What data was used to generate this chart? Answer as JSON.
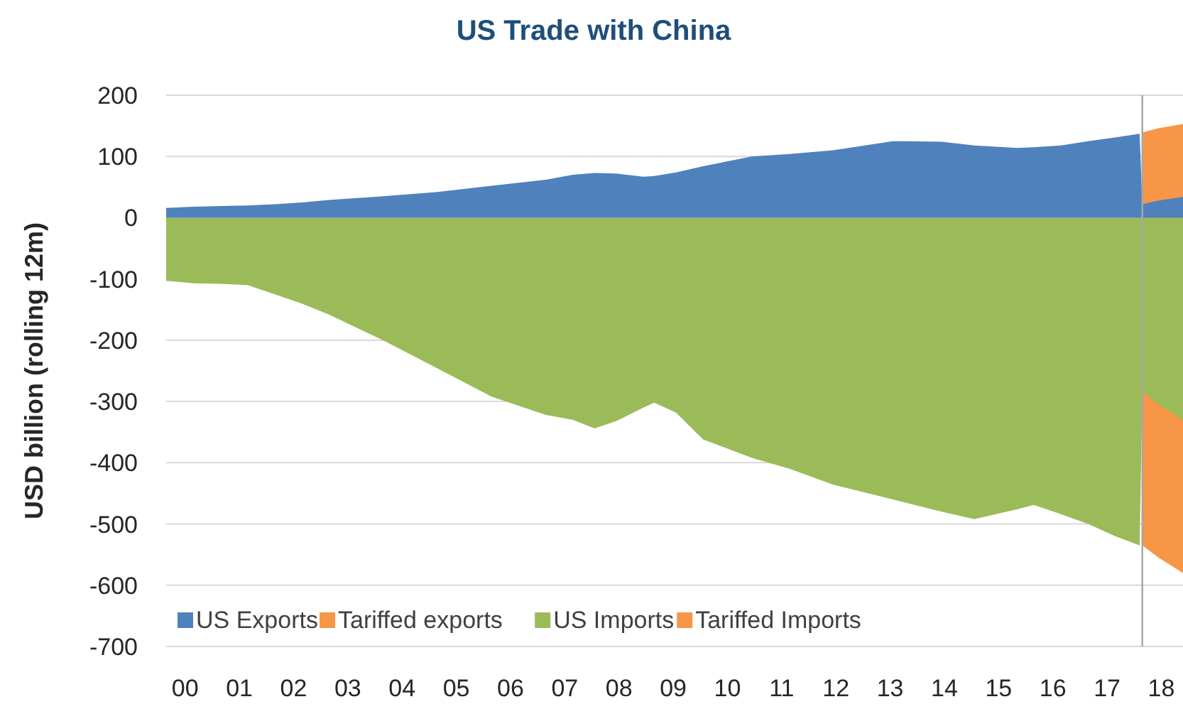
{
  "chart_data": {
    "type": "area",
    "title": "US Trade with China",
    "ylabel": "USD billion (rolling 12m)",
    "x": [
      -0.35,
      0.15,
      0.65,
      1.15,
      1.65,
      2.15,
      2.65,
      3.65,
      4.65,
      5.65,
      6.65,
      7.15,
      7.55,
      7.95,
      8.45,
      8.65,
      9.05,
      9.55,
      10.45,
      11.15,
      11.95,
      13.05,
      13.95,
      14.55,
      15.35,
      15.65,
      16.15,
      16.65,
      17.15,
      17.6,
      17.65,
      17.95,
      18.4
    ],
    "series": [
      {
        "name": "US Exports",
        "color": "#4f81bd",
        "values": [
          16,
          18,
          19,
          20,
          22,
          25,
          29,
          35,
          42,
          52,
          62,
          70,
          73,
          72,
          67,
          68,
          74,
          84,
          100,
          104,
          110,
          125,
          124,
          118,
          114,
          115,
          118,
          125,
          131,
          137,
          22,
          28,
          34
        ]
      },
      {
        "name": "Tariffed exports",
        "color": "#f79646",
        "values": [
          null,
          null,
          null,
          null,
          null,
          null,
          null,
          null,
          null,
          null,
          null,
          null,
          null,
          null,
          null,
          null,
          null,
          null,
          null,
          null,
          null,
          null,
          null,
          null,
          null,
          null,
          null,
          null,
          null,
          null,
          139,
          146,
          153
        ]
      },
      {
        "name": "US Imports",
        "color": "#9bbb59",
        "values": [
          -103,
          -107,
          -108,
          -110,
          -125,
          -140,
          -158,
          -200,
          -246,
          -292,
          -322,
          -330,
          -344,
          -332,
          -310,
          -302,
          -318,
          -362,
          -392,
          -410,
          -436,
          -460,
          -480,
          -492,
          -476,
          -469,
          -484,
          -500,
          -520,
          -535,
          -285,
          -305,
          -330
        ]
      },
      {
        "name": "Tariffed Imports",
        "color": "#f79646",
        "values": [
          null,
          null,
          null,
          null,
          null,
          null,
          null,
          null,
          null,
          null,
          null,
          null,
          null,
          null,
          null,
          null,
          null,
          null,
          null,
          null,
          null,
          null,
          null,
          null,
          null,
          null,
          null,
          null,
          null,
          null,
          -535,
          -555,
          -580
        ]
      }
    ],
    "xlim": [
      -0.35,
      18.4
    ],
    "xticks": [
      {
        "value": 0,
        "label": "00"
      },
      {
        "value": 1,
        "label": "01"
      },
      {
        "value": 2,
        "label": "02"
      },
      {
        "value": 3,
        "label": "03"
      },
      {
        "value": 4,
        "label": "04"
      },
      {
        "value": 5,
        "label": "05"
      },
      {
        "value": 6,
        "label": "06"
      },
      {
        "value": 7,
        "label": "07"
      },
      {
        "value": 8,
        "label": "08"
      },
      {
        "value": 9,
        "label": "09"
      },
      10,
      11,
      12,
      13,
      14,
      15,
      16,
      17,
      18
    ],
    "ylim": [
      -700,
      200
    ],
    "yticks": [
      -700,
      -600,
      -500,
      -400,
      -300,
      -200,
      -100,
      0,
      100,
      200
    ],
    "grid": "y",
    "legend": "bottom",
    "ref_lines": [
      {
        "axis": "x",
        "value": 17.65,
        "color": "#a6a6a6"
      }
    ]
  }
}
